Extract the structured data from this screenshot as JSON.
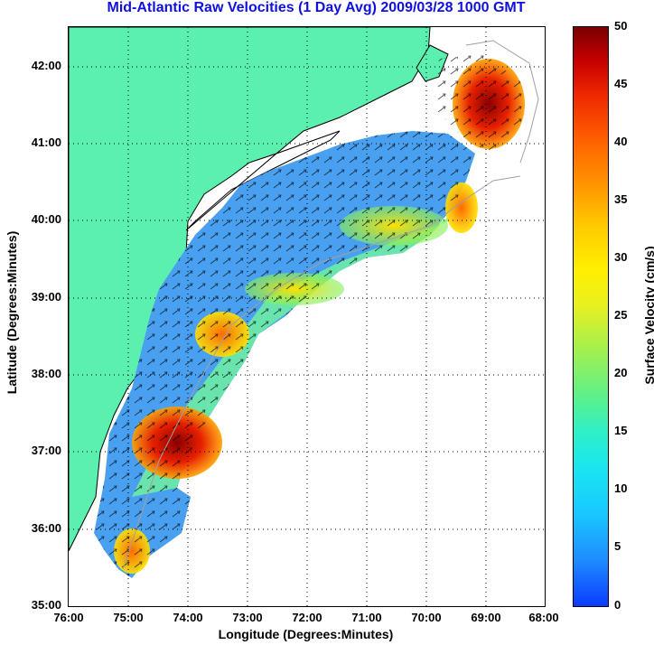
{
  "title": "Mid-Atlantic Raw Velocities (1 Day Avg) 2009/03/28 1000 GMT",
  "xlabel": "Longitude (Degrees:Minutes)",
  "ylabel": "Latitude (Degrees:Minutes)",
  "xticks": [
    "76:00",
    "75:00",
    "74:00",
    "73:00",
    "72:00",
    "71:00",
    "70:00",
    "69:00",
    "68:00"
  ],
  "yticks": [
    "42:00",
    "41:00",
    "40:00",
    "39:00",
    "38:00",
    "37:00",
    "36:00",
    "35:00"
  ],
  "colorbar": {
    "label": "Surface Velocity (cm/s)",
    "ticks": [
      "50",
      "45",
      "40",
      "35",
      "30",
      "25",
      "20",
      "15",
      "10",
      "5",
      "0"
    ],
    "range": [
      0,
      50
    ]
  },
  "colors": {
    "land": "#5cf0b0",
    "title": "#1010e0",
    "coast_line": "#000000",
    "isobath": "#a0a0a0",
    "arrows": "#000000"
  },
  "map_extent": {
    "lon": [
      -76,
      -68
    ],
    "lat": [
      35,
      42.5
    ]
  }
}
